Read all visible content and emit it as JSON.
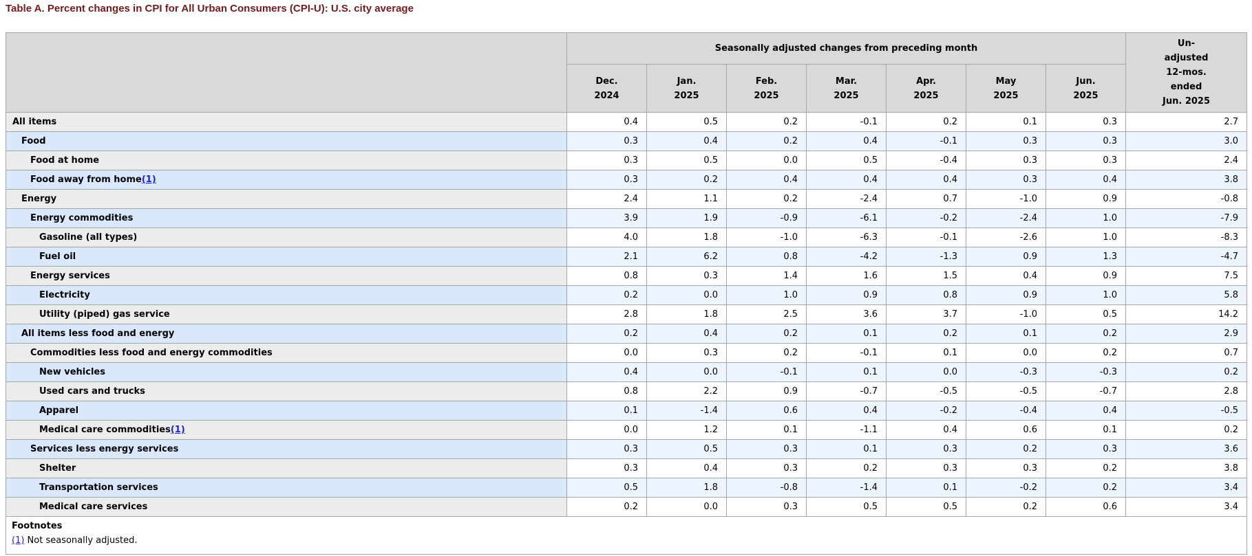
{
  "title": "Table A. Percent changes in CPI for All Urban Consumers (CPI-U): U.S. city average",
  "colors": {
    "title_text": "#741b1c",
    "link_blue": "#2222cc",
    "header_bg": "#d9d9d9",
    "row_label_gray": "#ececec",
    "row_data_white": "#ffffff",
    "row_label_blue": "#d9e8fc",
    "row_data_blue": "#eef4fd",
    "border_gray": "#a5a5a5"
  },
  "table": {
    "group_header": "Seasonally adjusted changes from preceding month",
    "unadjusted_header": "Un-\nadjusted\n12-mos.\nended\nJun. 2025",
    "months": [
      "Dec.\n2024",
      "Jan.\n2025",
      "Feb.\n2025",
      "Mar.\n2025",
      "Apr.\n2025",
      "May\n2025",
      "Jun.\n2025"
    ],
    "rows": [
      {
        "label": "All items",
        "indent": 0,
        "footnote_marker": "",
        "values": [
          "0.4",
          "0.5",
          "0.2",
          "-0.1",
          "0.2",
          "0.1",
          "0.3"
        ],
        "unadjusted": "2.7"
      },
      {
        "label": "Food",
        "indent": 1,
        "footnote_marker": "",
        "values": [
          "0.3",
          "0.4",
          "0.2",
          "0.4",
          "-0.1",
          "0.3",
          "0.3"
        ],
        "unadjusted": "3.0"
      },
      {
        "label": "Food at home",
        "indent": 2,
        "footnote_marker": "",
        "values": [
          "0.3",
          "0.5",
          "0.0",
          "0.5",
          "-0.4",
          "0.3",
          "0.3"
        ],
        "unadjusted": "2.4"
      },
      {
        "label": "Food away from home",
        "indent": 2,
        "footnote_marker": "(1)",
        "values": [
          "0.3",
          "0.2",
          "0.4",
          "0.4",
          "0.4",
          "0.3",
          "0.4"
        ],
        "unadjusted": "3.8"
      },
      {
        "label": "Energy",
        "indent": 1,
        "footnote_marker": "",
        "values": [
          "2.4",
          "1.1",
          "0.2",
          "-2.4",
          "0.7",
          "-1.0",
          "0.9"
        ],
        "unadjusted": "-0.8"
      },
      {
        "label": "Energy commodities",
        "indent": 2,
        "footnote_marker": "",
        "values": [
          "3.9",
          "1.9",
          "-0.9",
          "-6.1",
          "-0.2",
          "-2.4",
          "1.0"
        ],
        "unadjusted": "-7.9"
      },
      {
        "label": "Gasoline (all types)",
        "indent": 3,
        "footnote_marker": "",
        "values": [
          "4.0",
          "1.8",
          "-1.0",
          "-6.3",
          "-0.1",
          "-2.6",
          "1.0"
        ],
        "unadjusted": "-8.3"
      },
      {
        "label": "Fuel oil",
        "indent": 3,
        "footnote_marker": "",
        "values": [
          "2.1",
          "6.2",
          "0.8",
          "-4.2",
          "-1.3",
          "0.9",
          "1.3"
        ],
        "unadjusted": "-4.7"
      },
      {
        "label": "Energy services",
        "indent": 2,
        "footnote_marker": "",
        "values": [
          "0.8",
          "0.3",
          "1.4",
          "1.6",
          "1.5",
          "0.4",
          "0.9"
        ],
        "unadjusted": "7.5"
      },
      {
        "label": "Electricity",
        "indent": 3,
        "footnote_marker": "",
        "values": [
          "0.2",
          "0.0",
          "1.0",
          "0.9",
          "0.8",
          "0.9",
          "1.0"
        ],
        "unadjusted": "5.8"
      },
      {
        "label": "Utility (piped) gas service",
        "indent": 3,
        "footnote_marker": "",
        "values": [
          "2.8",
          "1.8",
          "2.5",
          "3.6",
          "3.7",
          "-1.0",
          "0.5"
        ],
        "unadjusted": "14.2"
      },
      {
        "label": "All items less food and energy",
        "indent": 1,
        "footnote_marker": "",
        "values": [
          "0.2",
          "0.4",
          "0.2",
          "0.1",
          "0.2",
          "0.1",
          "0.2"
        ],
        "unadjusted": "2.9"
      },
      {
        "label": "Commodities less food and energy commodities",
        "indent": 2,
        "footnote_marker": "",
        "values": [
          "0.0",
          "0.3",
          "0.2",
          "-0.1",
          "0.1",
          "0.0",
          "0.2"
        ],
        "unadjusted": "0.7"
      },
      {
        "label": "New vehicles",
        "indent": 3,
        "footnote_marker": "",
        "values": [
          "0.4",
          "0.0",
          "-0.1",
          "0.1",
          "0.0",
          "-0.3",
          "-0.3"
        ],
        "unadjusted": "0.2"
      },
      {
        "label": "Used cars and trucks",
        "indent": 3,
        "footnote_marker": "",
        "values": [
          "0.8",
          "2.2",
          "0.9",
          "-0.7",
          "-0.5",
          "-0.5",
          "-0.7"
        ],
        "unadjusted": "2.8"
      },
      {
        "label": "Apparel",
        "indent": 3,
        "footnote_marker": "",
        "values": [
          "0.1",
          "-1.4",
          "0.6",
          "0.4",
          "-0.2",
          "-0.4",
          "0.4"
        ],
        "unadjusted": "-0.5"
      },
      {
        "label": "Medical care commodities",
        "indent": 3,
        "footnote_marker": "(1)",
        "values": [
          "0.0",
          "1.2",
          "0.1",
          "-1.1",
          "0.4",
          "0.6",
          "0.1"
        ],
        "unadjusted": "0.2"
      },
      {
        "label": "Services less energy services",
        "indent": 2,
        "footnote_marker": "",
        "values": [
          "0.3",
          "0.5",
          "0.3",
          "0.1",
          "0.3",
          "0.2",
          "0.3"
        ],
        "unadjusted": "3.6"
      },
      {
        "label": "Shelter",
        "indent": 3,
        "footnote_marker": "",
        "values": [
          "0.3",
          "0.4",
          "0.3",
          "0.2",
          "0.3",
          "0.3",
          "0.2"
        ],
        "unadjusted": "3.8"
      },
      {
        "label": "Transportation services",
        "indent": 3,
        "footnote_marker": "",
        "values": [
          "0.5",
          "1.8",
          "-0.8",
          "-1.4",
          "0.1",
          "-0.2",
          "0.2"
        ],
        "unadjusted": "3.4"
      },
      {
        "label": "Medical care services",
        "indent": 3,
        "footnote_marker": "",
        "values": [
          "0.2",
          "0.0",
          "0.3",
          "0.5",
          "0.5",
          "0.2",
          "0.6"
        ],
        "unadjusted": "3.4"
      }
    ]
  },
  "footnotes": {
    "heading": "Footnotes",
    "marker": "(1)",
    "text": " Not seasonally adjusted."
  }
}
